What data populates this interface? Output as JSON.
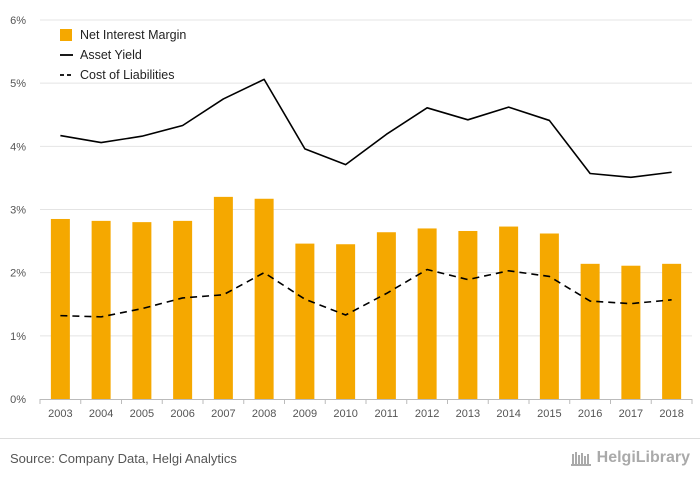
{
  "chart_data": {
    "type": "bar",
    "categories": [
      "2003",
      "2004",
      "2005",
      "2006",
      "2007",
      "2008",
      "2009",
      "2010",
      "2011",
      "2012",
      "2013",
      "2014",
      "2015",
      "2016",
      "2017",
      "2018"
    ],
    "ylim": [
      0,
      6
    ],
    "yticks": [
      "0%",
      "1%",
      "2%",
      "3%",
      "4%",
      "5%",
      "6%"
    ],
    "grid": true,
    "legend_position": "top-left",
    "series": [
      {
        "name": "Net Interest Margin",
        "kind": "bar",
        "color": "#f5a800",
        "values": [
          2.85,
          2.82,
          2.8,
          2.82,
          3.2,
          3.17,
          2.46,
          2.45,
          2.64,
          2.7,
          2.66,
          2.73,
          2.62,
          2.14,
          2.11,
          2.14
        ]
      },
      {
        "name": "Asset Yield",
        "kind": "line",
        "style": "solid",
        "color": "#000000",
        "values": [
          4.17,
          4.06,
          4.16,
          4.33,
          4.75,
          5.06,
          3.96,
          3.71,
          4.19,
          4.61,
          4.42,
          4.62,
          4.41,
          3.57,
          3.51,
          3.59
        ]
      },
      {
        "name": "Cost of Liabilities",
        "kind": "line",
        "style": "dashed",
        "color": "#000000",
        "values": [
          1.32,
          1.3,
          1.43,
          1.6,
          1.65,
          2.0,
          1.58,
          1.33,
          1.67,
          2.05,
          1.89,
          2.03,
          1.94,
          1.55,
          1.51,
          1.57
        ]
      }
    ]
  },
  "footer": {
    "source": "Source: Company Data, Helgi Analytics",
    "brand": "HelgiLibrary"
  }
}
